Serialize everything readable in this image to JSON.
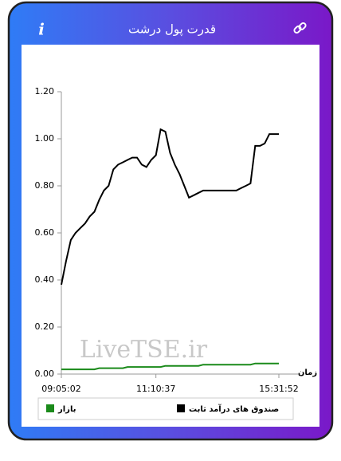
{
  "header": {
    "title": "قدرت پول درشت",
    "info": "i"
  },
  "chart_data": {
    "type": "line",
    "watermark": "LiveTSE.ir",
    "x_label": "زمان",
    "x": [
      "09:05:02",
      null,
      null,
      null,
      null,
      null,
      null,
      null,
      null,
      null,
      null,
      null,
      null,
      null,
      null,
      null,
      null,
      null,
      null,
      null,
      "11:10:37",
      null,
      null,
      null,
      null,
      null,
      null,
      null,
      null,
      null,
      null,
      null,
      null,
      null,
      null,
      null,
      null,
      null,
      null,
      null,
      null,
      null,
      null,
      null,
      null,
      null,
      "15:31:52"
    ],
    "ylim": [
      0,
      1.2
    ],
    "yticks": [
      {
        "value": 0,
        "label": "0.00"
      },
      {
        "value": 0.2,
        "label": "0.20"
      },
      {
        "value": 0.4,
        "label": "0.40"
      },
      {
        "value": 0.6,
        "label": "0.60"
      },
      {
        "value": 0.8,
        "label": "0.80"
      },
      {
        "value": 1.0,
        "label": "1.00"
      },
      {
        "value": 1.2,
        "label": "1.20"
      }
    ],
    "series": [
      {
        "name": "صندوق های درآمد ثابت",
        "color": "#000000",
        "values": [
          0.38,
          0.48,
          0.57,
          0.6,
          0.62,
          0.64,
          0.67,
          0.69,
          0.74,
          0.78,
          0.8,
          0.87,
          0.89,
          0.9,
          0.91,
          0.92,
          0.92,
          0.89,
          0.88,
          0.91,
          0.93,
          1.04,
          1.03,
          0.94,
          0.89,
          0.85,
          0.8,
          0.75,
          0.76,
          0.77,
          0.78,
          0.78,
          0.78,
          0.78,
          0.78,
          0.78,
          0.78,
          0.78,
          0.79,
          0.8,
          0.81,
          0.97,
          0.97,
          0.98,
          1.02,
          1.02,
          1.02
        ]
      },
      {
        "name": "بازار",
        "color": "#1a8a1a",
        "values": [
          0.02,
          0.02,
          0.02,
          0.02,
          0.02,
          0.02,
          0.02,
          0.02,
          0.025,
          0.025,
          0.025,
          0.025,
          0.025,
          0.025,
          0.03,
          0.03,
          0.03,
          0.03,
          0.03,
          0.03,
          0.03,
          0.03,
          0.035,
          0.035,
          0.035,
          0.035,
          0.035,
          0.035,
          0.035,
          0.035,
          0.04,
          0.04,
          0.04,
          0.04,
          0.04,
          0.04,
          0.04,
          0.04,
          0.04,
          0.04,
          0.04,
          0.045,
          0.045,
          0.045,
          0.045,
          0.045,
          0.045
        ]
      }
    ]
  }
}
